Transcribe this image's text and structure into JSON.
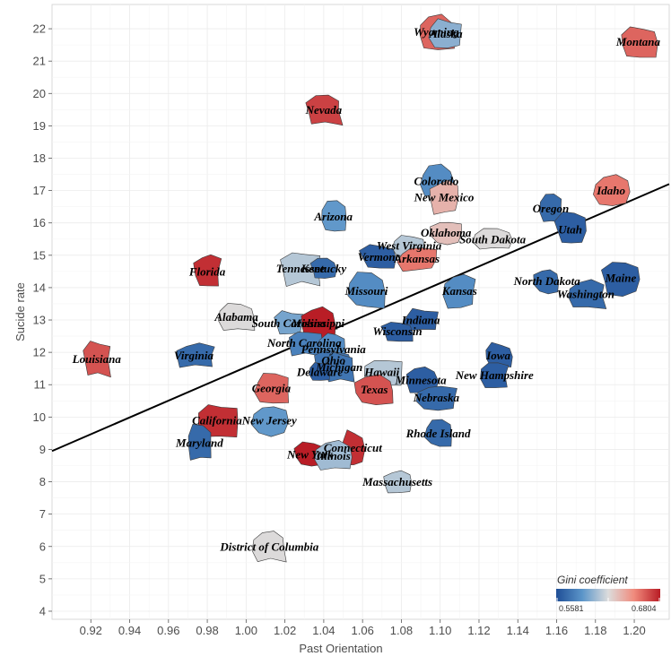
{
  "chart_data": {
    "type": "scatter",
    "xlabel": "Past Orientation",
    "ylabel": "Sucide rate",
    "xlim": [
      0.9,
      1.218
    ],
    "ylim": [
      3.75,
      22.75
    ],
    "x_ticks": [
      0.92,
      0.94,
      0.96,
      0.98,
      1.0,
      1.02,
      1.04,
      1.06,
      1.08,
      1.1,
      1.12,
      1.14,
      1.16,
      1.18,
      1.2
    ],
    "x_tick_labels": [
      "0.92",
      "0.94",
      "0.96",
      "0.98",
      "1.00",
      "1.02",
      "1.04",
      "1.06",
      "1.08",
      "1.10",
      "1.12",
      "1.14",
      "1.16",
      "1.18",
      "1.20"
    ],
    "y_ticks": [
      4,
      5,
      6,
      7,
      8,
      9,
      10,
      11,
      12,
      13,
      14,
      15,
      16,
      17,
      18,
      19,
      20,
      21,
      22
    ],
    "grid": true,
    "regression_line": {
      "x": [
        0.9,
        1.218
      ],
      "y": [
        8.95,
        17.2
      ]
    },
    "legend": {
      "title": "Gini coefficient",
      "min_label": "0.5581",
      "max_label": "0.6804",
      "min": 0.5581,
      "max": 0.6804,
      "placement": "bottom-right"
    },
    "points": [
      {
        "name": "Wyoming",
        "x": 1.098,
        "y": 21.9,
        "gini": 0.66
      },
      {
        "name": "Alaska",
        "x": 1.103,
        "y": 21.85,
        "gini": 0.6
      },
      {
        "name": "Montana",
        "x": 1.202,
        "y": 21.6,
        "gini": 0.66
      },
      {
        "name": "Nevada",
        "x": 1.04,
        "y": 19.5,
        "gini": 0.67
      },
      {
        "name": "Colorado",
        "x": 1.098,
        "y": 17.3,
        "gini": 0.585
      },
      {
        "name": "Idaho",
        "x": 1.188,
        "y": 17.0,
        "gini": 0.655
      },
      {
        "name": "New Mexico",
        "x": 1.102,
        "y": 16.8,
        "gini": 0.635
      },
      {
        "name": "Arizona",
        "x": 1.045,
        "y": 16.2,
        "gini": 0.59
      },
      {
        "name": "Oregon",
        "x": 1.157,
        "y": 16.45,
        "gini": 0.57
      },
      {
        "name": "Utah",
        "x": 1.167,
        "y": 15.8,
        "gini": 0.565
      },
      {
        "name": "Oklahoma",
        "x": 1.103,
        "y": 15.7,
        "gini": 0.63
      },
      {
        "name": "South Dakota",
        "x": 1.127,
        "y": 15.5,
        "gini": 0.62
      },
      {
        "name": "West Virginia",
        "x": 1.084,
        "y": 15.3,
        "gini": 0.61
      },
      {
        "name": "Vermont",
        "x": 1.068,
        "y": 14.95,
        "gini": 0.565
      },
      {
        "name": "Arkansas",
        "x": 1.088,
        "y": 14.9,
        "gini": 0.655
      },
      {
        "name": "Tennessee",
        "x": 1.028,
        "y": 14.6,
        "gini": 0.61
      },
      {
        "name": "Kentucky",
        "x": 1.04,
        "y": 14.6,
        "gini": 0.57
      },
      {
        "name": "Florida",
        "x": 0.98,
        "y": 14.5,
        "gini": 0.675
      },
      {
        "name": "North Dakota",
        "x": 1.155,
        "y": 14.2,
        "gini": 0.57
      },
      {
        "name": "Maine",
        "x": 1.193,
        "y": 14.3,
        "gini": 0.565
      },
      {
        "name": "Missouri",
        "x": 1.062,
        "y": 13.9,
        "gini": 0.585
      },
      {
        "name": "Kansas",
        "x": 1.11,
        "y": 13.9,
        "gini": 0.585
      },
      {
        "name": "Washington",
        "x": 1.175,
        "y": 13.8,
        "gini": 0.57
      },
      {
        "name": "Alabama",
        "x": 0.995,
        "y": 13.1,
        "gini": 0.62
      },
      {
        "name": "South Carolina",
        "x": 1.022,
        "y": 12.9,
        "gini": 0.595
      },
      {
        "name": "Mississippi",
        "x": 1.037,
        "y": 12.9,
        "gini": 0.68
      },
      {
        "name": "Indiana",
        "x": 1.09,
        "y": 13.0,
        "gini": 0.565
      },
      {
        "name": "Wisconsin",
        "x": 1.078,
        "y": 12.65,
        "gini": 0.565
      },
      {
        "name": "North Carolina",
        "x": 1.03,
        "y": 12.3,
        "gini": 0.58
      },
      {
        "name": "Pennsylvania",
        "x": 1.045,
        "y": 12.1,
        "gini": 0.585
      },
      {
        "name": "Louisiana",
        "x": 0.923,
        "y": 11.8,
        "gini": 0.665
      },
      {
        "name": "Virginia",
        "x": 0.973,
        "y": 11.9,
        "gini": 0.57
      },
      {
        "name": "Ohio",
        "x": 1.045,
        "y": 11.75,
        "gini": 0.575
      },
      {
        "name": "Iowa",
        "x": 1.13,
        "y": 11.9,
        "gini": 0.565
      },
      {
        "name": "Michigan",
        "x": 1.048,
        "y": 11.55,
        "gini": 0.575
      },
      {
        "name": "Delaware",
        "x": 1.038,
        "y": 11.4,
        "gini": 0.565
      },
      {
        "name": "Hawaii",
        "x": 1.07,
        "y": 11.4,
        "gini": 0.61
      },
      {
        "name": "New Hampshire",
        "x": 1.128,
        "y": 11.3,
        "gini": 0.565
      },
      {
        "name": "Minnesota",
        "x": 1.09,
        "y": 11.15,
        "gini": 0.565
      },
      {
        "name": "Georgia",
        "x": 1.013,
        "y": 10.9,
        "gini": 0.66
      },
      {
        "name": "Texas",
        "x": 1.066,
        "y": 10.85,
        "gini": 0.665
      },
      {
        "name": "Nebraska",
        "x": 1.098,
        "y": 10.6,
        "gini": 0.57
      },
      {
        "name": "California",
        "x": 0.985,
        "y": 9.9,
        "gini": 0.675
      },
      {
        "name": "New Jersey",
        "x": 1.012,
        "y": 9.9,
        "gini": 0.59
      },
      {
        "name": "Rhode Island",
        "x": 1.099,
        "y": 9.5,
        "gini": 0.57
      },
      {
        "name": "Maryland",
        "x": 0.976,
        "y": 9.2,
        "gini": 0.57
      },
      {
        "name": "Connecticut",
        "x": 1.055,
        "y": 9.05,
        "gini": 0.675
      },
      {
        "name": "New York",
        "x": 1.033,
        "y": 8.85,
        "gini": 0.68
      },
      {
        "name": "Illinois",
        "x": 1.045,
        "y": 8.8,
        "gini": 0.605
      },
      {
        "name": "Massachusetts",
        "x": 1.078,
        "y": 8.0,
        "gini": 0.61
      },
      {
        "name": "District of Columbia",
        "x": 1.012,
        "y": 6.0,
        "gini": 0.62
      }
    ]
  }
}
